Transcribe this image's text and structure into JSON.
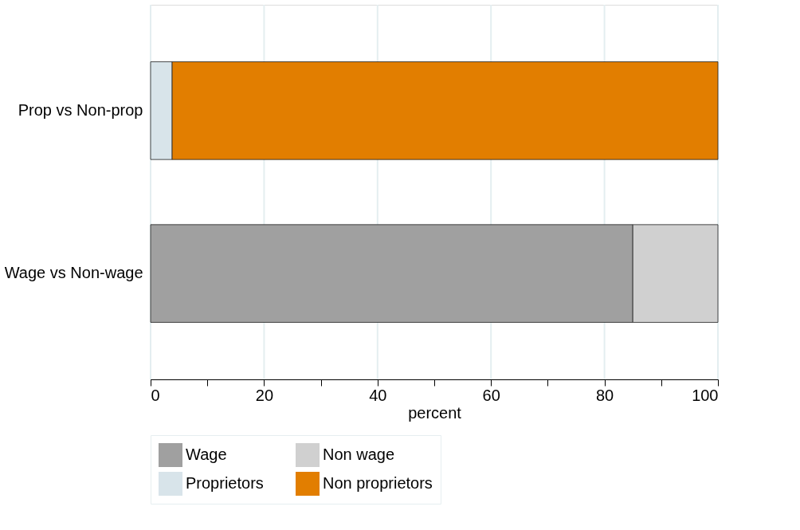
{
  "chart_data": {
    "type": "bar",
    "orientation": "horizontal",
    "stacked": true,
    "categories": [
      "Prop vs Non-prop",
      "Wage vs Non-wage"
    ],
    "series": [
      {
        "name": "Wage",
        "color": "#a0a0a0",
        "values": [
          null,
          85
        ]
      },
      {
        "name": "Non wage",
        "color": "#d0d0d0",
        "values": [
          null,
          15
        ]
      },
      {
        "name": "Proprietors",
        "color": "#d8e4ea",
        "values": [
          3.8,
          null
        ]
      },
      {
        "name": "Non proprietors",
        "color": "#e27e00",
        "values": [
          96.2,
          null
        ]
      }
    ],
    "xlabel": "percent",
    "xlim": [
      0,
      100
    ],
    "xticks": [
      0,
      {
        "value": 10,
        "label": null
      },
      20,
      {
        "value": 30,
        "label": null
      },
      40,
      {
        "value": 50,
        "label": null
      },
      60,
      {
        "value": 70,
        "label": null
      },
      80,
      {
        "value": 90,
        "label": null
      },
      100
    ],
    "grid": "x",
    "legend": "bottom"
  }
}
